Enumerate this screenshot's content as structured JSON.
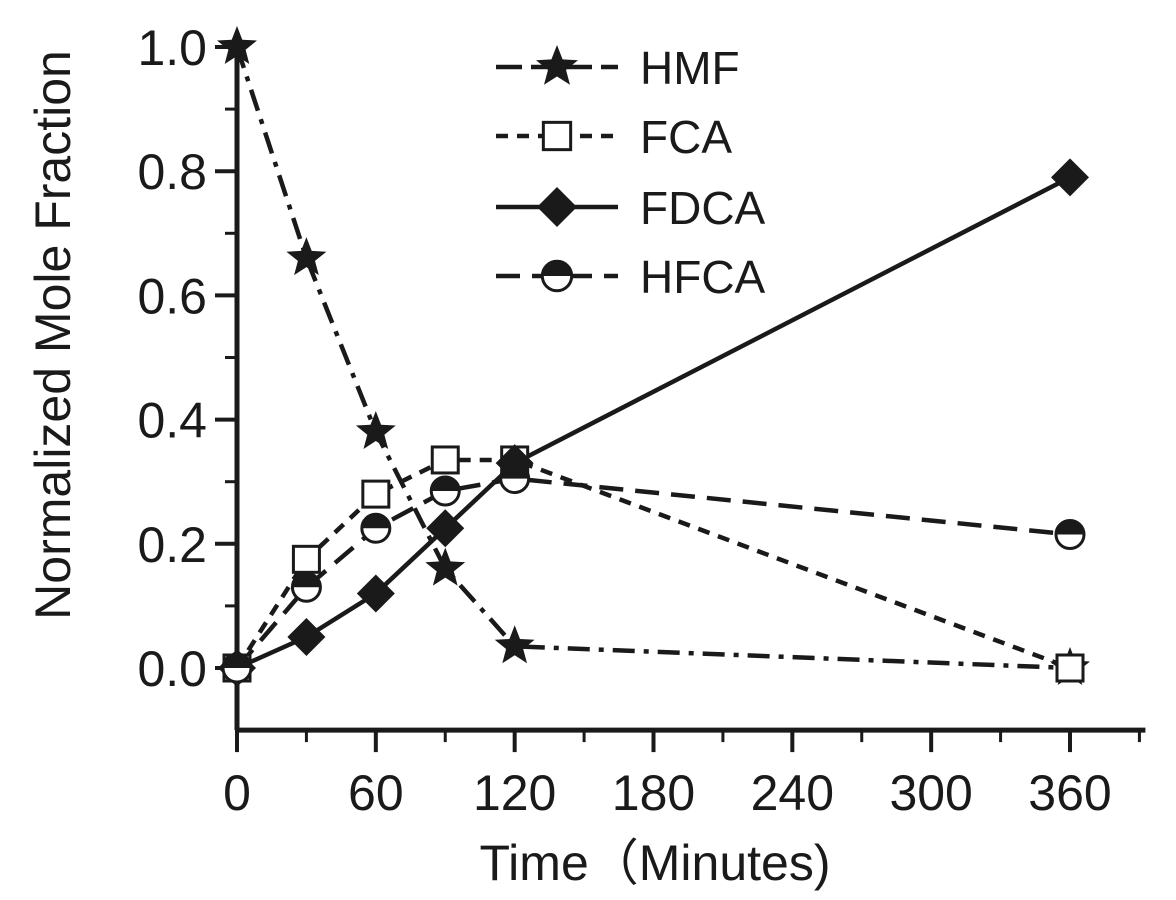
{
  "chart_data": {
    "type": "line",
    "title": "",
    "xlabel": "Time（Minutes)",
    "ylabel": "Normalized Mole Fraction",
    "xlim": [
      0,
      390
    ],
    "ylim": [
      -0.1,
      1.0
    ],
    "xticks": [
      0,
      60,
      120,
      180,
      240,
      300,
      360
    ],
    "xtick_labels": [
      "0",
      "60",
      "120",
      "180",
      "240",
      "300",
      "360"
    ],
    "yticks": [
      0.0,
      0.2,
      0.4,
      0.6,
      0.8,
      1.0
    ],
    "ytick_labels": [
      "0.0",
      "0.2",
      "0.4",
      "0.6",
      "0.8",
      "1.0"
    ],
    "grid": false,
    "legend_position": "top-center",
    "series": [
      {
        "name": "HMF",
        "marker": "star",
        "line_style": "dash-dot",
        "color": "#1a1a1a",
        "x": [
          0,
          30,
          60,
          90,
          120,
          360
        ],
        "y": [
          1.0,
          0.66,
          0.38,
          0.16,
          0.035,
          0.0
        ]
      },
      {
        "name": "FCA",
        "marker": "open-square",
        "line_style": "short-dash",
        "color": "#1a1a1a",
        "x": [
          0,
          30,
          60,
          90,
          120,
          360
        ],
        "y": [
          0.0,
          0.175,
          0.28,
          0.335,
          0.335,
          0.0
        ]
      },
      {
        "name": "FDCA",
        "marker": "filled-diamond",
        "line_style": "solid",
        "color": "#1a1a1a",
        "x": [
          0,
          30,
          60,
          90,
          120,
          360
        ],
        "y": [
          0.0,
          0.05,
          0.12,
          0.225,
          0.33,
          0.79
        ]
      },
      {
        "name": "HFCA",
        "marker": "half-filled-circle",
        "line_style": "dash",
        "color": "#1a1a1a",
        "x": [
          0,
          30,
          60,
          90,
          120,
          360
        ],
        "y": [
          0.0,
          0.13,
          0.225,
          0.285,
          0.305,
          0.215
        ]
      }
    ]
  }
}
